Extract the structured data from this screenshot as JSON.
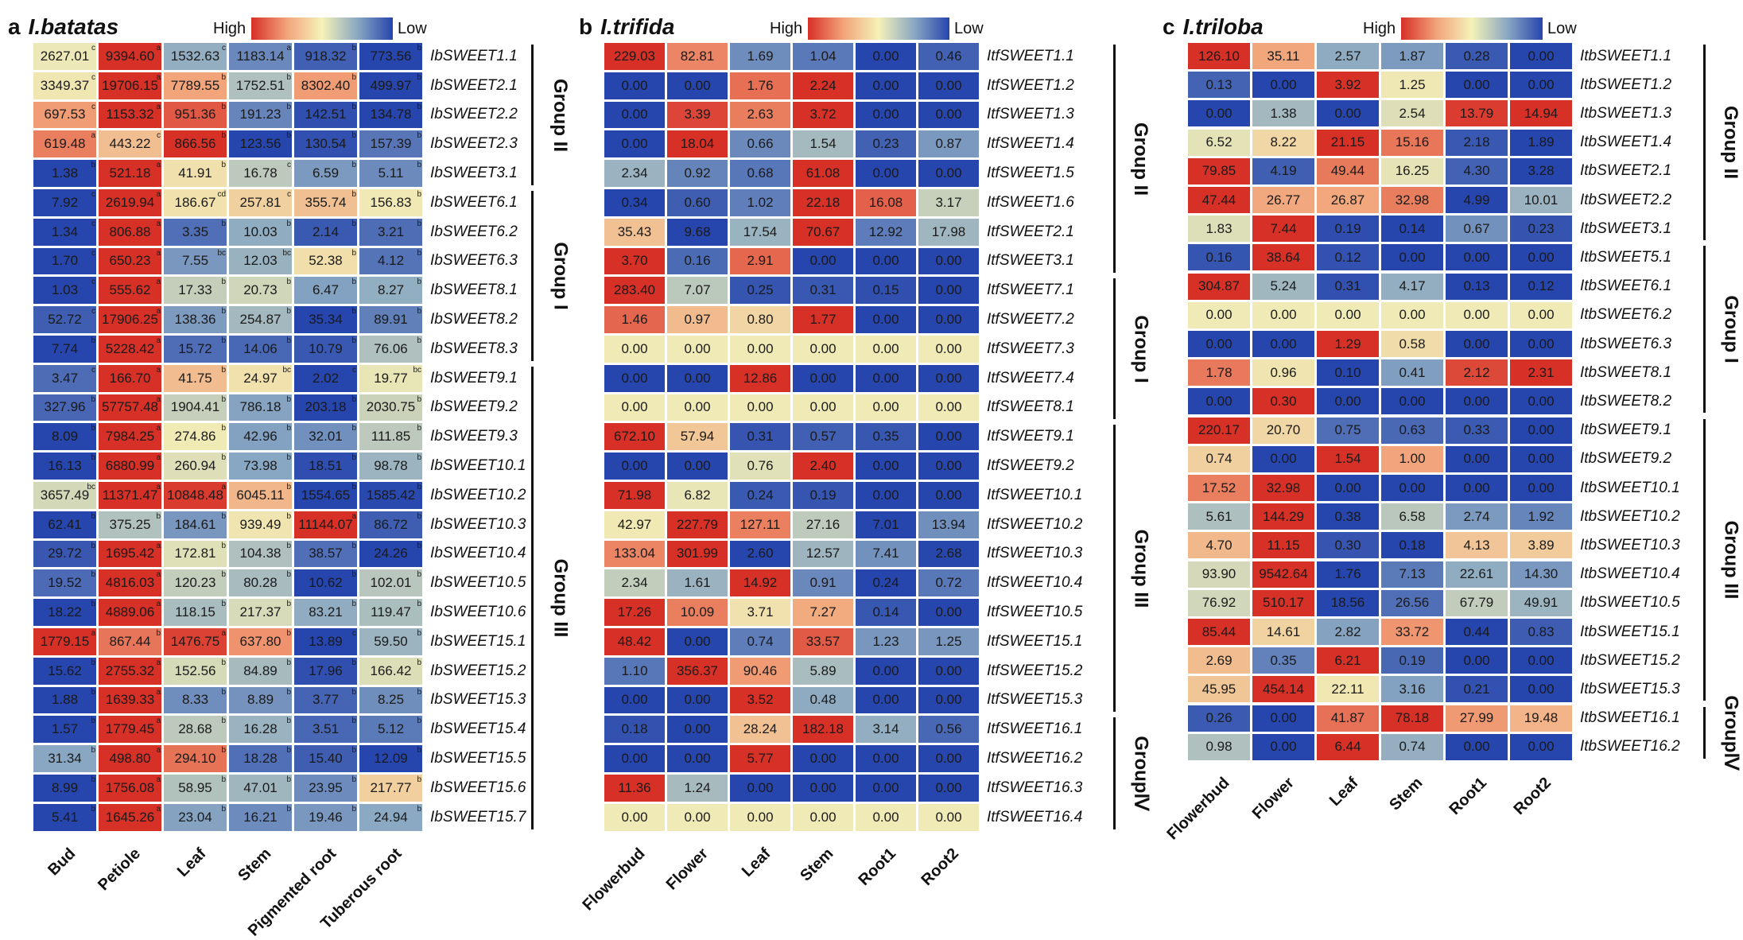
{
  "chart_data": [
    {
      "type": "heatmap",
      "panel_letter": "a",
      "species": "I.batatas",
      "legend": {
        "high_label": "High",
        "low_label": "Low"
      },
      "columns": [
        "Bud",
        "Petiole",
        "Leaf",
        "Stem",
        "Pigmented root",
        "Tuberous root"
      ],
      "rows": [
        "IbSWEET1.1",
        "IbSWEET2.1",
        "IbSWEET2.2",
        "IbSWEET2.3",
        "IbSWEET3.1",
        "IbSWEET6.1",
        "IbSWEET6.2",
        "IbSWEET6.3",
        "IbSWEET8.1",
        "IbSWEET8.2",
        "IbSWEET8.3",
        "IbSWEET9.1",
        "IbSWEET9.2",
        "IbSWEET9.3",
        "IbSWEET10.1",
        "IbSWEET10.2",
        "IbSWEET10.3",
        "IbSWEET10.4",
        "IbSWEET10.5",
        "IbSWEET10.6",
        "IbSWEET15.1",
        "IbSWEET15.2",
        "IbSWEET15.3",
        "IbSWEET15.4",
        "IbSWEET15.5",
        "IbSWEET15.6",
        "IbSWEET15.7"
      ],
      "values": [
        [
          "2627.01",
          "9394.60",
          "1532.63",
          "1183.14",
          "918.32",
          "773.56"
        ],
        [
          "3349.37",
          "19706.15",
          "7789.55",
          "1752.51",
          "8302.40",
          "499.97"
        ],
        [
          "697.53",
          "1153.32",
          "951.36",
          "191.23",
          "142.51",
          "134.78"
        ],
        [
          "619.48",
          "443.22",
          "866.56",
          "123.56",
          "130.54",
          "157.39"
        ],
        [
          "1.38",
          "521.18",
          "41.91",
          "16.78",
          "6.59",
          "5.11"
        ],
        [
          "7.92",
          "2619.94",
          "186.67",
          "257.81",
          "355.74",
          "156.83"
        ],
        [
          "1.34",
          "806.88",
          "3.35",
          "10.03",
          "2.14",
          "3.21"
        ],
        [
          "1.70",
          "650.23",
          "7.55",
          "12.03",
          "52.38",
          "4.12"
        ],
        [
          "1.03",
          "555.62",
          "17.33",
          "20.73",
          "6.47",
          "8.27"
        ],
        [
          "52.72",
          "17906.25",
          "138.36",
          "254.87",
          "35.34",
          "89.91"
        ],
        [
          "7.74",
          "5228.42",
          "15.72",
          "14.06",
          "10.79",
          "76.06"
        ],
        [
          "3.47",
          "166.70",
          "41.75",
          "24.97",
          "2.02",
          "19.77"
        ],
        [
          "327.96",
          "57757.48",
          "1904.41",
          "786.18",
          "203.18",
          "2030.75"
        ],
        [
          "8.09",
          "7984.25",
          "274.86",
          "42.96",
          "32.01",
          "111.85"
        ],
        [
          "16.13",
          "6880.99",
          "260.94",
          "73.98",
          "18.51",
          "98.78"
        ],
        [
          "3657.49",
          "11371.47",
          "10848.48",
          "6045.11",
          "1554.65",
          "1585.42"
        ],
        [
          "62.41",
          "375.25",
          "184.61",
          "939.49",
          "11144.07",
          "86.72"
        ],
        [
          "29.72",
          "1695.42",
          "172.81",
          "104.38",
          "38.57",
          "24.26"
        ],
        [
          "19.52",
          "4816.03",
          "120.23",
          "80.28",
          "10.62",
          "102.01"
        ],
        [
          "18.22",
          "4889.06",
          "118.15",
          "217.37",
          "83.21",
          "119.47"
        ],
        [
          "1779.15",
          "867.44",
          "1476.75",
          "637.80",
          "13.89",
          "59.50"
        ],
        [
          "15.62",
          "2755.32",
          "152.56",
          "84.89",
          "17.96",
          "166.42"
        ],
        [
          "1.88",
          "1639.33",
          "8.33",
          "8.89",
          "3.77",
          "8.25"
        ],
        [
          "1.57",
          "1779.45",
          "28.68",
          "16.28",
          "3.51",
          "5.12"
        ],
        [
          "31.34",
          "498.80",
          "294.10",
          "18.28",
          "15.40",
          "12.09"
        ],
        [
          "8.99",
          "1756.08",
          "58.95",
          "47.01",
          "23.95",
          "217.77"
        ],
        [
          "5.41",
          "1645.26",
          "23.04",
          "16.21",
          "19.46",
          "24.94"
        ]
      ],
      "significance": [
        [
          "c",
          "a",
          "c",
          "a",
          "b",
          "b"
        ],
        [
          "c",
          "a",
          "b",
          "b",
          "b",
          "b"
        ],
        [
          "c",
          "a",
          "b",
          "b",
          "b",
          "b"
        ],
        [
          "a",
          "c",
          "b",
          "b",
          "b",
          "b"
        ],
        [
          "b",
          "a",
          "b",
          "c",
          "b",
          "b"
        ],
        [
          "c",
          "a",
          "cd",
          "c",
          "b",
          "b"
        ],
        [
          "c",
          "a",
          "b",
          "b",
          "b",
          "b"
        ],
        [
          "c",
          "a",
          "bc",
          "bc",
          "b",
          "b"
        ],
        [
          "c",
          "a",
          "b",
          "b",
          "b",
          "b"
        ],
        [
          "c",
          "a",
          "b",
          "b",
          "b",
          "b"
        ],
        [
          "b",
          "a",
          "b",
          "b",
          "b",
          "b"
        ],
        [
          "c",
          "a",
          "b",
          "bc",
          "c",
          "bc"
        ],
        [
          "b",
          "a",
          "b",
          "b",
          "b",
          "b"
        ],
        [
          "b",
          "a",
          "b",
          "b",
          "b",
          "b"
        ],
        [
          "b",
          "a",
          "b",
          "b",
          "b",
          "b"
        ],
        [
          "bc",
          "a",
          "a",
          "b",
          "b",
          "b"
        ],
        [
          "b",
          "b",
          "b",
          "b",
          "a",
          "b"
        ],
        [
          "b",
          "a",
          "b",
          "b",
          "b",
          "b"
        ],
        [
          "b",
          "a",
          "b",
          "b",
          "b",
          "b"
        ],
        [
          "b",
          "a",
          "b",
          "b",
          "b",
          "b"
        ],
        [
          "a",
          "b",
          "a",
          "b",
          "c",
          "b"
        ],
        [
          "b",
          "a",
          "b",
          "b",
          "b",
          "b"
        ],
        [
          "b",
          "a",
          "b",
          "b",
          "b",
          "b"
        ],
        [
          "b",
          "a",
          "b",
          "b",
          "b",
          "b"
        ],
        [
          "b",
          "a",
          "b",
          "b",
          "b",
          "b"
        ],
        [
          "b",
          "a",
          "b",
          "b",
          "b",
          "b"
        ],
        [
          "b",
          "a",
          "b",
          "b",
          "b",
          "b"
        ]
      ],
      "groups": [
        {
          "label": "Group II",
          "start": 0,
          "end": 4
        },
        {
          "label": "Group I",
          "start": 5,
          "end": 10
        },
        {
          "label": "Group III",
          "start": 11,
          "end": 26
        }
      ]
    },
    {
      "type": "heatmap",
      "panel_letter": "b",
      "species": "I.trifida",
      "legend": {
        "high_label": "High",
        "low_label": "Low"
      },
      "columns": [
        "Flowerbud",
        "Flower",
        "Leaf",
        "Stem",
        "Root1",
        "Root2"
      ],
      "rows": [
        "ItfSWEET1.1",
        "ItfSWEET1.2",
        "ItfSWEET1.3",
        "ItfSWEET1.4",
        "ItfSWEET1.5",
        "ItfSWEET1.6",
        "ItfSWEET2.1",
        "ItfSWEET3.1",
        "ItfSWEET7.1",
        "ItfSWEET7.2",
        "ItfSWEET7.3",
        "ItfSWEET7.4",
        "ItfSWEET8.1",
        "ItfSWEET9.1",
        "ItfSWEET9.2",
        "ItfSWEET10.1",
        "ItfSWEET10.2",
        "ItfSWEET10.3",
        "ItfSWEET10.4",
        "ItfSWEET10.5",
        "ItfSWEET15.1",
        "ItfSWEET15.2",
        "ItfSWEET15.3",
        "ItfSWEET16.1",
        "ItfSWEET16.2",
        "ItfSWEET16.3",
        "ItfSWEET16.4"
      ],
      "values": [
        [
          "229.03",
          "82.81",
          "1.69",
          "1.04",
          "0.00",
          "0.46"
        ],
        [
          "0.00",
          "0.00",
          "1.76",
          "2.24",
          "0.00",
          "0.00"
        ],
        [
          "0.00",
          "3.39",
          "2.63",
          "3.72",
          "0.00",
          "0.00"
        ],
        [
          "0.00",
          "18.04",
          "0.66",
          "1.54",
          "0.23",
          "0.87"
        ],
        [
          "2.34",
          "0.92",
          "0.68",
          "61.08",
          "0.00",
          "0.00"
        ],
        [
          "0.34",
          "0.60",
          "1.02",
          "22.18",
          "16.08",
          "3.17"
        ],
        [
          "35.43",
          "9.68",
          "17.54",
          "70.67",
          "12.92",
          "17.98"
        ],
        [
          "3.70",
          "0.16",
          "2.91",
          "0.00",
          "0.00",
          "0.00"
        ],
        [
          "283.40",
          "7.07",
          "0.25",
          "0.31",
          "0.15",
          "0.00"
        ],
        [
          "1.46",
          "0.97",
          "0.80",
          "1.77",
          "0.00",
          "0.00"
        ],
        [
          "0.00",
          "0.00",
          "0.00",
          "0.00",
          "0.00",
          "0.00"
        ],
        [
          "0.00",
          "0.00",
          "12.86",
          "0.00",
          "0.00",
          "0.00"
        ],
        [
          "0.00",
          "0.00",
          "0.00",
          "0.00",
          "0.00",
          "0.00"
        ],
        [
          "672.10",
          "57.94",
          "0.31",
          "0.57",
          "0.35",
          "0.00"
        ],
        [
          "0.00",
          "0.00",
          "0.76",
          "2.40",
          "0.00",
          "0.00"
        ],
        [
          "71.98",
          "6.82",
          "0.24",
          "0.19",
          "0.00",
          "0.00"
        ],
        [
          "42.97",
          "227.79",
          "127.11",
          "27.16",
          "7.01",
          "13.94"
        ],
        [
          "133.04",
          "301.99",
          "2.60",
          "12.57",
          "7.41",
          "2.68"
        ],
        [
          "2.34",
          "1.61",
          "14.92",
          "0.91",
          "0.24",
          "0.72"
        ],
        [
          "17.26",
          "10.09",
          "3.71",
          "7.27",
          "0.14",
          "0.00"
        ],
        [
          "48.42",
          "0.00",
          "0.74",
          "33.57",
          "1.23",
          "1.25"
        ],
        [
          "1.10",
          "356.37",
          "90.46",
          "5.89",
          "0.00",
          "0.00"
        ],
        [
          "0.00",
          "0.00",
          "3.52",
          "0.48",
          "0.00",
          "0.00"
        ],
        [
          "0.18",
          "0.00",
          "28.24",
          "182.18",
          "3.14",
          "0.56"
        ],
        [
          "0.00",
          "0.00",
          "5.77",
          "0.00",
          "0.00",
          "0.00"
        ],
        [
          "11.36",
          "1.24",
          "0.00",
          "0.00",
          "0.00",
          "0.00"
        ],
        [
          "0.00",
          "0.00",
          "0.00",
          "0.00",
          "0.00",
          "0.00"
        ]
      ],
      "groups": [
        {
          "label": "Group II",
          "start": 0,
          "end": 7
        },
        {
          "label": "Group I",
          "start": 8,
          "end": 12
        },
        {
          "label": "Group III",
          "start": 13,
          "end": 22
        },
        {
          "label": "GroupⅣ",
          "start": 23,
          "end": 26
        }
      ]
    },
    {
      "type": "heatmap",
      "panel_letter": "c",
      "species": "I.triloba",
      "legend": {
        "high_label": "High",
        "low_label": "Low"
      },
      "columns": [
        "Flowerbud",
        "Flower",
        "Leaf",
        "Stem",
        "Root1",
        "Root2"
      ],
      "rows": [
        "ItbSWEET1.1",
        "ItbSWEET1.2",
        "ItbSWEET1.3",
        "ItbSWEET1.4",
        "ItbSWEET2.1",
        "ItbSWEET2.2",
        "ItbSWEET3.1",
        "ItbSWEET5.1",
        "ItbSWEET6.1",
        "ItbSWEET6.2",
        "ItbSWEET6.3",
        "ItbSWEET8.1",
        "ItbSWEET8.2",
        "ItbSWEET9.1",
        "ItbSWEET9.2",
        "ItbSWEET10.1",
        "ItbSWEET10.2",
        "ItbSWEET10.3",
        "ItbSWEET10.4",
        "ItbSWEET10.5",
        "ItbSWEET15.1",
        "ItbSWEET15.2",
        "ItbSWEET15.3",
        "ItbSWEET16.1",
        "ItbSWEET16.2"
      ],
      "values": [
        [
          "126.10",
          "35.11",
          "2.57",
          "1.87",
          "0.28",
          "0.00"
        ],
        [
          "0.13",
          "0.00",
          "3.92",
          "1.25",
          "0.00",
          "0.00"
        ],
        [
          "0.00",
          "1.38",
          "0.00",
          "2.54",
          "13.79",
          "14.94"
        ],
        [
          "6.52",
          "8.22",
          "21.15",
          "15.16",
          "2.18",
          "1.89"
        ],
        [
          "79.85",
          "4.19",
          "49.44",
          "16.25",
          "4.30",
          "3.28"
        ],
        [
          "47.44",
          "26.77",
          "26.87",
          "32.98",
          "4.99",
          "10.01"
        ],
        [
          "1.83",
          "7.44",
          "0.19",
          "0.14",
          "0.67",
          "0.23"
        ],
        [
          "0.16",
          "38.64",
          "0.12",
          "0.00",
          "0.00",
          "0.00"
        ],
        [
          "304.87",
          "5.24",
          "0.31",
          "4.17",
          "0.13",
          "0.12"
        ],
        [
          "0.00",
          "0.00",
          "0.00",
          "0.00",
          "0.00",
          "0.00"
        ],
        [
          "0.00",
          "0.00",
          "1.29",
          "0.58",
          "0.00",
          "0.00"
        ],
        [
          "1.78",
          "0.96",
          "0.10",
          "0.41",
          "2.12",
          "2.31"
        ],
        [
          "0.00",
          "0.30",
          "0.00",
          "0.00",
          "0.00",
          "0.00"
        ],
        [
          "220.17",
          "20.70",
          "0.75",
          "0.63",
          "0.33",
          "0.00"
        ],
        [
          "0.74",
          "0.00",
          "1.54",
          "1.00",
          "0.00",
          "0.00"
        ],
        [
          "17.52",
          "32.98",
          "0.00",
          "0.00",
          "0.00",
          "0.00"
        ],
        [
          "5.61",
          "144.29",
          "0.38",
          "6.58",
          "2.74",
          "1.92"
        ],
        [
          "4.70",
          "11.15",
          "0.30",
          "0.18",
          "4.13",
          "3.89"
        ],
        [
          "93.90",
          "9542.64",
          "1.76",
          "7.13",
          "22.61",
          "14.30"
        ],
        [
          "76.92",
          "510.17",
          "18.56",
          "26.56",
          "67.79",
          "49.91"
        ],
        [
          "85.44",
          "14.61",
          "2.82",
          "33.72",
          "0.44",
          "0.83"
        ],
        [
          "2.69",
          "0.35",
          "6.21",
          "0.19",
          "0.00",
          "0.00"
        ],
        [
          "45.95",
          "454.14",
          "22.11",
          "3.16",
          "0.21",
          "0.00"
        ],
        [
          "0.26",
          "0.00",
          "41.87",
          "78.18",
          "27.99",
          "19.48"
        ],
        [
          "0.98",
          "0.00",
          "6.44",
          "0.74",
          "0.00",
          "0.00"
        ]
      ],
      "groups": [
        {
          "label": "Group II",
          "start": 0,
          "end": 6
        },
        {
          "label": "Group I",
          "start": 7,
          "end": 12
        },
        {
          "label": "Group III",
          "start": 13,
          "end": 22
        },
        {
          "label": "GroupⅣ",
          "start": 23,
          "end": 24
        }
      ]
    }
  ]
}
